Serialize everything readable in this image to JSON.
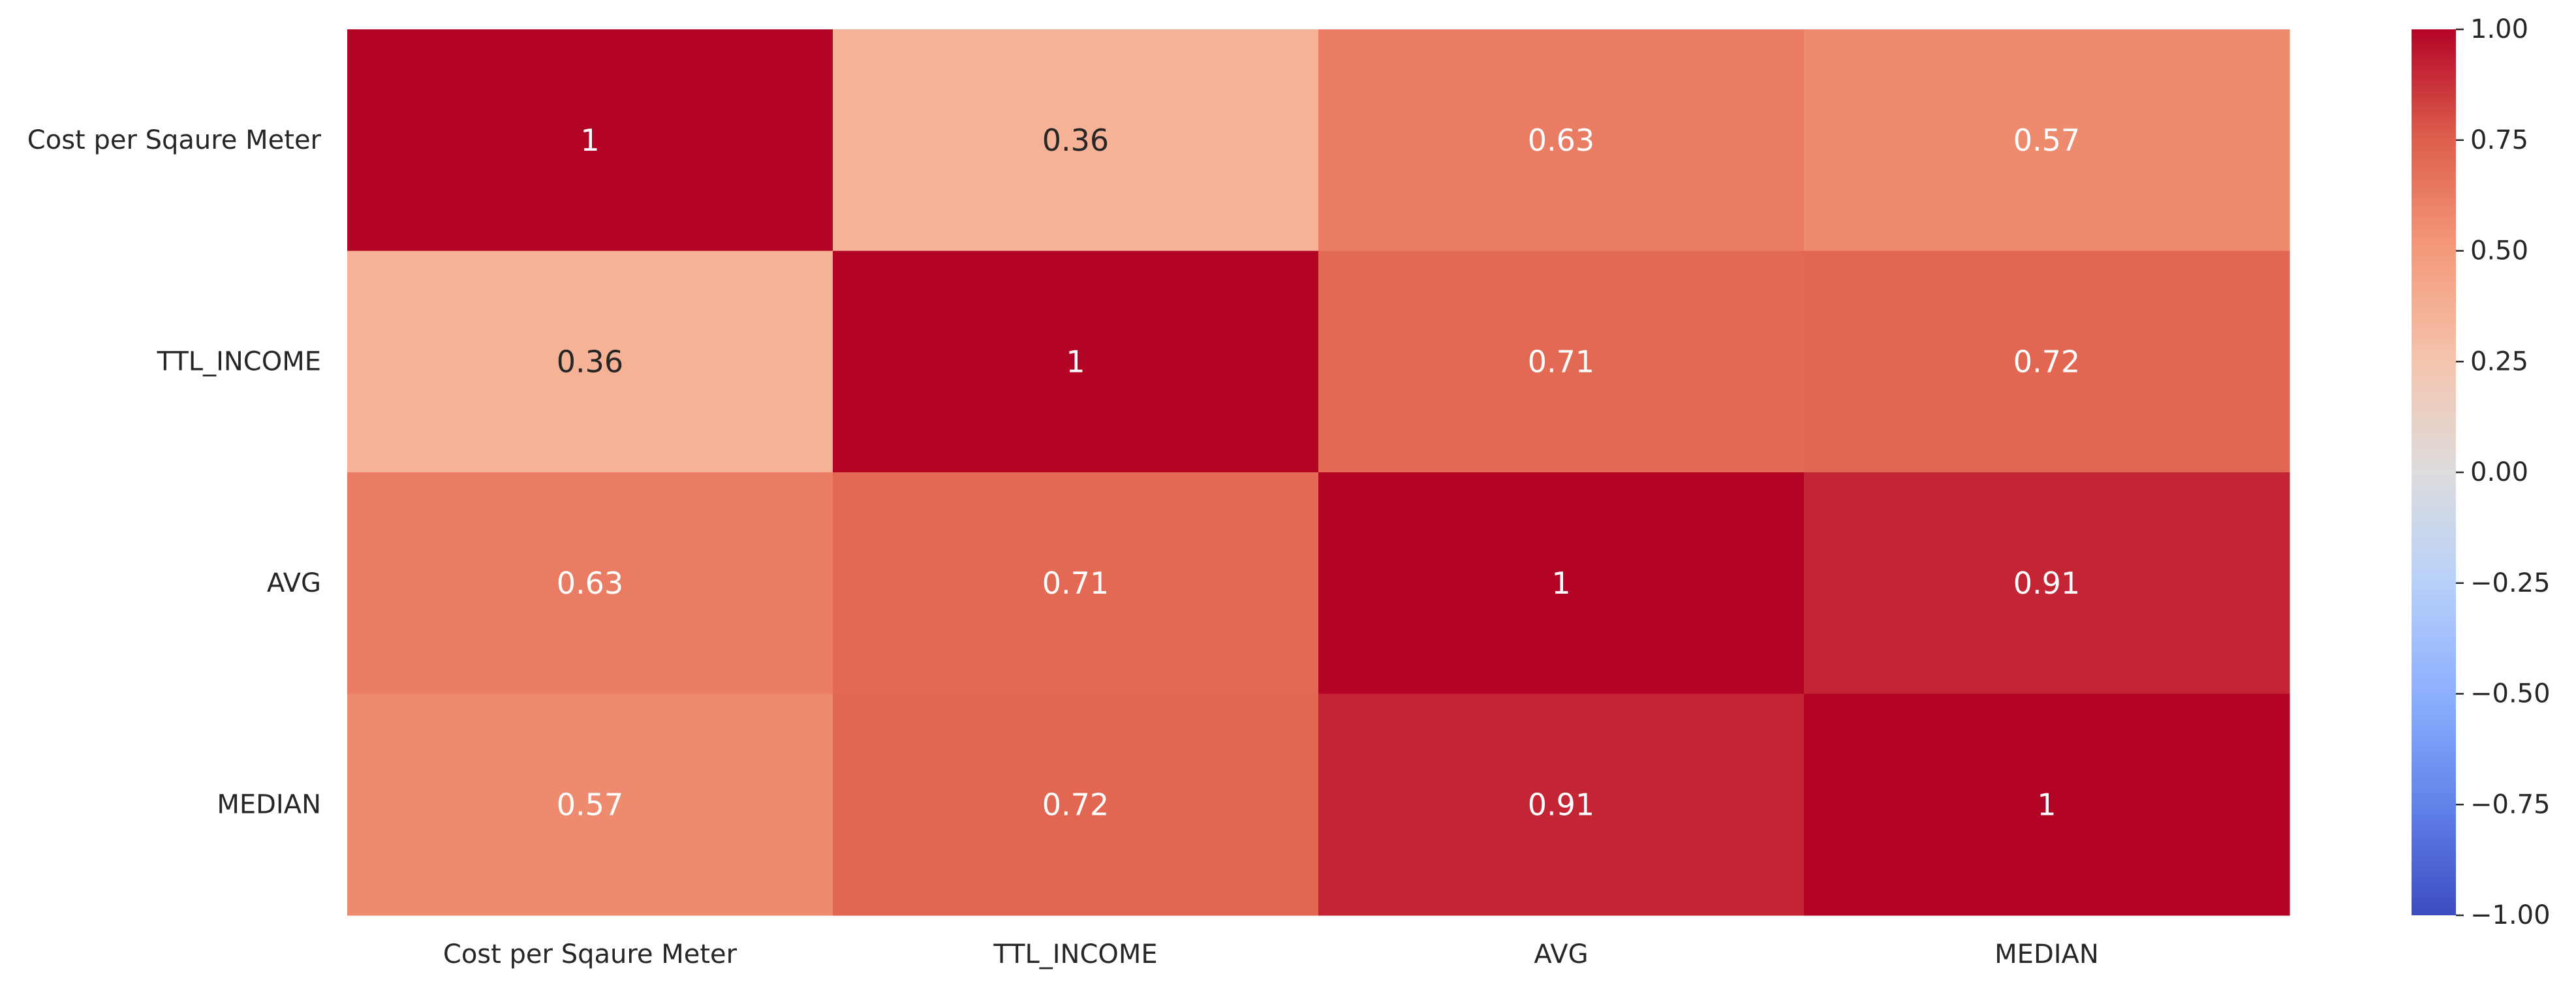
{
  "chart_data": {
    "type": "heatmap",
    "rows": [
      "Cost per Sqaure Meter",
      "TTL_INCOME",
      "AVG",
      "MEDIAN"
    ],
    "columns": [
      "Cost per Sqaure Meter",
      "TTL_INCOME",
      "AVG",
      "MEDIAN"
    ],
    "values": [
      [
        1,
        0.36,
        0.63,
        0.57
      ],
      [
        0.36,
        1,
        0.71,
        0.72
      ],
      [
        0.63,
        0.71,
        1,
        0.91
      ],
      [
        0.57,
        0.72,
        0.91,
        1
      ]
    ],
    "annotations": [
      [
        "1",
        "0.36",
        "0.63",
        "0.57"
      ],
      [
        "0.36",
        "1",
        "0.71",
        "0.72"
      ],
      [
        "0.63",
        "0.71",
        "1",
        "0.91"
      ],
      [
        "0.57",
        "0.72",
        "0.91",
        "1"
      ]
    ],
    "colormap": "coolwarm",
    "vmin": -1,
    "vmax": 1,
    "colorbar": {
      "ticks": [
        1,
        0.75,
        0.5,
        0.25,
        0,
        -0.25,
        -0.5,
        -0.75,
        -1
      ],
      "tick_labels": [
        "1.00",
        "0.75",
        "0.50",
        "0.25",
        "0.00",
        "−0.25",
        "−0.50",
        "−0.75",
        "−1.00"
      ],
      "placement": "right"
    },
    "title": "",
    "xlabel": "",
    "ylabel": "",
    "grid": false
  }
}
